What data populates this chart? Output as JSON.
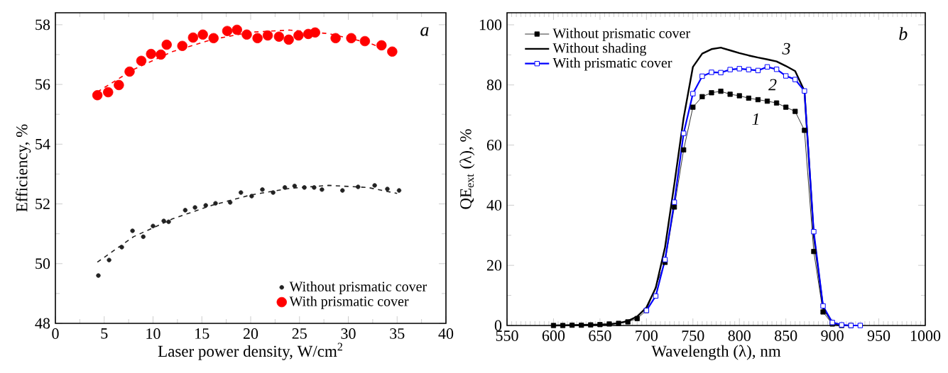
{
  "chart_data": [
    {
      "type": "scatter",
      "xlabel": "Laser power density, W/cm$^{2}$",
      "ylabel": "Efficiency, %",
      "xlim": [
        0,
        40
      ],
      "ylim": [
        48,
        58.4
      ],
      "xticks": [
        0,
        5,
        10,
        15,
        20,
        25,
        30,
        35,
        40
      ],
      "yticks": [
        48,
        50,
        52,
        54,
        56,
        58
      ],
      "legend": "bottom right",
      "annotations": [
        "a"
      ],
      "series": [
        {
          "name": "Without prismatic cover",
          "color": "#222222",
          "marker": "circle",
          "x": [
            4.4,
            5.5,
            6.8,
            7.9,
            9.0,
            10.0,
            11.1,
            11.6,
            13.3,
            14.3,
            15.4,
            16.4,
            17.9,
            19.0,
            20.1,
            21.2,
            22.3,
            23.5,
            24.5,
            25.5,
            26.5,
            27.3,
            29.4,
            31.0,
            32.7,
            34.0,
            35.2
          ],
          "values": [
            49.6,
            50.12,
            50.55,
            51.1,
            50.9,
            51.26,
            51.43,
            51.4,
            51.79,
            51.88,
            51.95,
            52.02,
            52.05,
            52.38,
            52.26,
            52.48,
            52.38,
            52.55,
            52.6,
            52.55,
            52.55,
            52.48,
            52.45,
            52.57,
            52.62,
            52.5,
            52.45
          ]
        },
        {
          "name": "With prismatic cover",
          "color": "#ff0000",
          "marker": "circle",
          "x": [
            4.3,
            5.4,
            6.5,
            7.6,
            8.8,
            9.8,
            10.8,
            11.4,
            13.0,
            14.1,
            15.1,
            16.2,
            17.6,
            18.6,
            19.6,
            20.7,
            21.75,
            22.9,
            23.9,
            24.9,
            25.9,
            26.6,
            28.7,
            30.3,
            31.7,
            33.4,
            34.5
          ],
          "values": [
            55.64,
            55.74,
            55.98,
            56.43,
            56.79,
            57.02,
            57.0,
            57.33,
            57.29,
            57.57,
            57.67,
            57.55,
            57.79,
            57.83,
            57.67,
            57.55,
            57.64,
            57.6,
            57.5,
            57.64,
            57.69,
            57.74,
            57.55,
            57.55,
            57.45,
            57.31,
            57.1
          ]
        },
        {
          "type": "line",
          "line_style": "dashed",
          "color": "#222222",
          "x": [
            4.3,
            8,
            12,
            16,
            20,
            24,
            28,
            32,
            35
          ],
          "values": [
            50.05,
            50.9,
            51.5,
            51.95,
            52.3,
            52.52,
            52.62,
            52.55,
            52.35
          ]
        },
        {
          "type": "line",
          "line_style": "dashed",
          "color": "#ff0000",
          "x": [
            4.3,
            8,
            12,
            16,
            20,
            24,
            28,
            32,
            34.5
          ],
          "values": [
            55.75,
            56.5,
            57.1,
            57.5,
            57.75,
            57.82,
            57.7,
            57.4,
            57.1
          ]
        }
      ]
    },
    {
      "type": "line",
      "xlabel": "Wavelength (λ), nm",
      "ylabel": "QE$_{ext}$ (λ), %",
      "xlim": [
        550,
        1000
      ],
      "ylim": [
        0,
        104
      ],
      "xticks": [
        550,
        600,
        650,
        700,
        750,
        800,
        850,
        900,
        950,
        1000
      ],
      "yticks": [
        0,
        20,
        40,
        60,
        80,
        100
      ],
      "legend": "top left",
      "annotations": [
        "b",
        "1",
        "2",
        "3"
      ],
      "series": [
        {
          "name": "Without prismatic cover",
          "color": "#000000",
          "marker": "square",
          "x": [
            600,
            610,
            620,
            630,
            640,
            650,
            660,
            670,
            680,
            690,
            700,
            720,
            730,
            740,
            750,
            760,
            770,
            780,
            790,
            800,
            810,
            820,
            830,
            840,
            850,
            860,
            870,
            880,
            890,
            900,
            910,
            920
          ],
          "values": [
            0,
            0,
            0.1,
            0.1,
            0.2,
            0.3,
            0.5,
            0.7,
            1.2,
            2.3,
            5.0,
            21.0,
            39.4,
            58.4,
            72.6,
            76.1,
            77.4,
            77.9,
            76.9,
            76.4,
            75.6,
            75.1,
            74.6,
            74.0,
            72.6,
            71.2,
            64.9,
            24.6,
            4.5,
            0.5,
            0,
            0
          ]
        },
        {
          "name": "Without shading",
          "color": "#000000",
          "marker": "none",
          "x": [
            600,
            650,
            660,
            670,
            680,
            690,
            700,
            710,
            720,
            730,
            740,
            750,
            760,
            770,
            780,
            790,
            800,
            810,
            820,
            830,
            840,
            850,
            860,
            870,
            880,
            890,
            900,
            910
          ],
          "values": [
            0,
            0.3,
            0.4,
            0.8,
            1.5,
            3.0,
            6.0,
            12.5,
            26,
            47,
            69,
            86,
            90.4,
            91.9,
            92.4,
            91.5,
            90.6,
            89.8,
            89.1,
            88.5,
            87.8,
            86.3,
            84.6,
            78,
            30,
            6,
            1,
            0
          ]
        },
        {
          "name": "With prismatic cover",
          "color": "#0000ff",
          "marker": "square",
          "x": [
            700,
            710,
            720,
            730,
            740,
            750,
            760,
            770,
            780,
            790,
            800,
            810,
            820,
            830,
            840,
            850,
            860,
            870,
            880,
            890,
            900,
            910,
            920,
            930
          ],
          "values": [
            5.0,
            9.8,
            21.9,
            41.0,
            63.9,
            77.1,
            82.9,
            84.2,
            84.1,
            85.1,
            85.4,
            85.1,
            84.8,
            86.0,
            85.2,
            83.0,
            81.8,
            78.0,
            31.2,
            6.5,
            1.0,
            0.2,
            0,
            0
          ]
        }
      ]
    }
  ]
}
